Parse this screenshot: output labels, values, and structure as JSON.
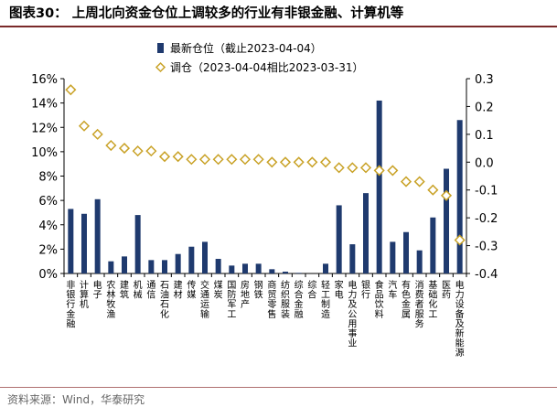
{
  "header": {
    "title": "图表30： 上周北向资金仓位上调较多的行业有非银金融、计算机等"
  },
  "footer": {
    "source": "资料来源：Wind，华泰研究"
  },
  "chart_data": {
    "type": "bar+scatter",
    "categories": [
      "非银行金融",
      "计算机",
      "电子",
      "农林牧渔",
      "建筑",
      "机械",
      "通信",
      "石油石化",
      "建材",
      "传媒",
      "交通运输",
      "煤炭",
      "国防军工",
      "房地产",
      "钢铁",
      "商贸零售",
      "纺织服装",
      "综合金融",
      "综合",
      "轻工制造",
      "家电",
      "电力及公用事业",
      "银行",
      "食品饮料",
      "汽车",
      "有色金属",
      "消费者服务",
      "基础化工",
      "医药",
      "电力设备及新能源"
    ],
    "series": [
      {
        "name": "最新仓位（截止2023-04-04）",
        "axis": "left",
        "style": "bar",
        "values": [
          5.3,
          4.9,
          6.1,
          1.0,
          1.4,
          4.8,
          1.1,
          1.1,
          1.6,
          2.2,
          2.6,
          1.2,
          0.65,
          0.8,
          0.8,
          0.35,
          0.15,
          0.05,
          0.0,
          0.8,
          5.6,
          2.4,
          6.6,
          14.2,
          2.6,
          3.4,
          1.9,
          4.6,
          8.6,
          12.6
        ]
      },
      {
        "name": "调仓（2023-04-04相比2023-03-31）",
        "axis": "right",
        "style": "diamond",
        "values": [
          0.26,
          0.13,
          0.1,
          0.06,
          0.05,
          0.04,
          0.04,
          0.02,
          0.02,
          0.01,
          0.01,
          0.01,
          0.01,
          0.01,
          0.01,
          0.0,
          0.0,
          0.0,
          0.0,
          0.0,
          -0.02,
          -0.02,
          -0.02,
          -0.03,
          -0.03,
          -0.07,
          -0.07,
          -0.1,
          -0.12,
          -0.28
        ]
      }
    ],
    "left_axis": {
      "min": 0,
      "max": 16,
      "step": 2,
      "ticks": [
        "0%",
        "2%",
        "4%",
        "6%",
        "8%",
        "10%",
        "12%",
        "14%",
        "16%"
      ]
    },
    "right_axis": {
      "min": -0.4,
      "max": 0.3,
      "step": 0.1,
      "ticks": [
        "-0.4",
        "-0.3",
        "-0.2",
        "-0.1",
        "0.0",
        "0.1",
        "0.2",
        "0.3"
      ]
    },
    "grid": false,
    "legend_position": "top-left",
    "colors": {
      "bar": "#1f3a6e",
      "diamond": "#c9a227",
      "axis": "#000000"
    }
  }
}
